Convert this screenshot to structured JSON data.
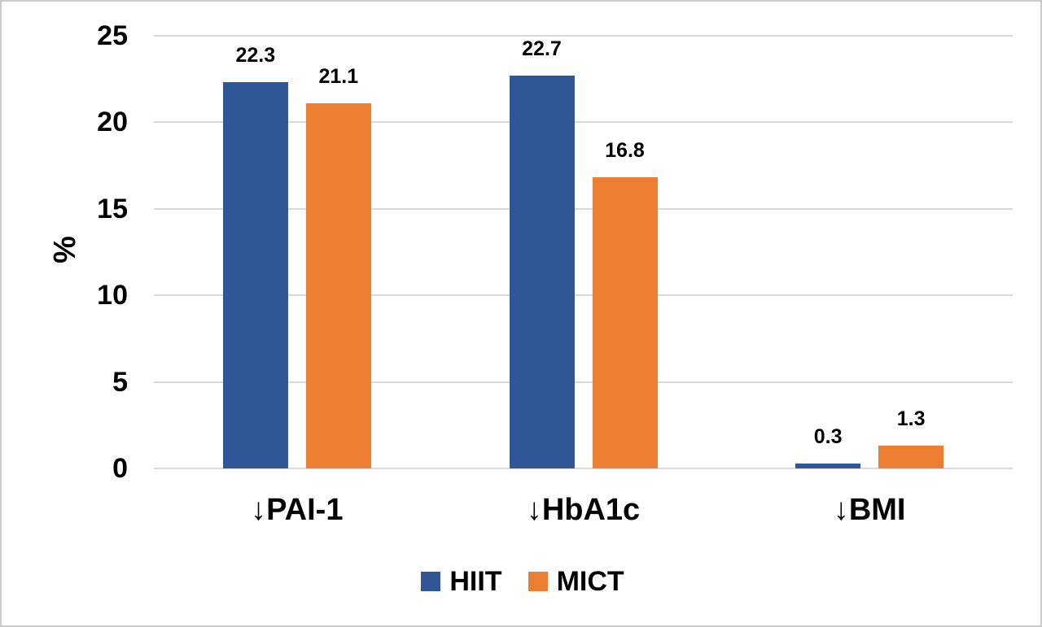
{
  "chart_data": {
    "type": "bar",
    "title": "",
    "categories": [
      "↓PAI-1",
      "↓HbA1c",
      "↓BMI"
    ],
    "series": [
      {
        "name": "HIIT",
        "color": "#2F5697",
        "values": [
          22.3,
          22.7,
          0.3
        ]
      },
      {
        "name": "MICT",
        "color": "#ED7D31",
        "values": [
          21.1,
          16.8,
          1.3
        ]
      }
    ],
    "data_labels": {
      "HIIT": [
        "22.3",
        "22.7",
        "0.3"
      ],
      "MICT": [
        "21.1",
        "16.8",
        "1.3"
      ]
    },
    "xlabel": "",
    "ylabel": "%",
    "ylim": [
      0,
      25
    ],
    "yticks": [
      0,
      5,
      10,
      15,
      20,
      25
    ],
    "grid": true,
    "legend_position": "bottom-center"
  },
  "colors": {
    "gridline": "#d9d9d9",
    "frame_border": "#cccccc",
    "text": "#000000",
    "background": "#ffffff"
  }
}
